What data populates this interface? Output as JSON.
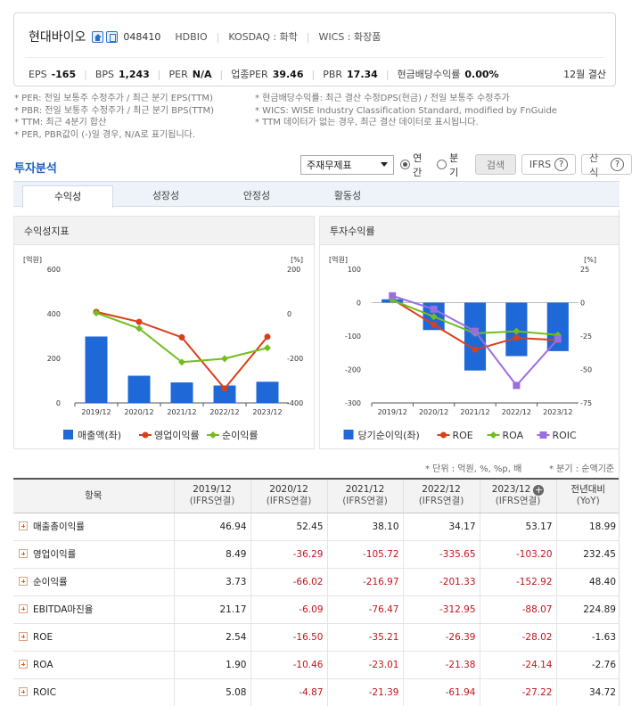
{
  "header": {
    "company_name": "현대바이오",
    "stock_code": "048410",
    "ticker": "HDBIO",
    "market": "KOSDAQ : 화학",
    "wics": "WICS : 화장품",
    "metrics": [
      {
        "label": "EPS",
        "value": "-165"
      },
      {
        "label": "BPS",
        "value": "1,243"
      },
      {
        "label": "PER",
        "value": "N/A"
      },
      {
        "label": "업종PER",
        "value": "39.46"
      },
      {
        "label": "PBR",
        "value": "17.34"
      },
      {
        "label": "현금배당수익률",
        "value": "0.00%"
      }
    ],
    "fiscal": "12월 결산"
  },
  "notes": {
    "left": [
      "* PER: 전일 보통주 수정주가 / 최근 분기 EPS(TTM)",
      "* PBR: 전일 보통주 수정주가 / 최근 분기 BPS(TTM)",
      "* TTM: 최근 4분기 합산",
      "* PER, PBR값이 (-)일 경우, N/A로 표기됩니다."
    ],
    "right": [
      "* 현금배당수익률: 최근 결산 수정DPS(현금) / 전일 보통주 수정주가",
      "* WICS: WISE Industry Classification Standard, modified by FnGuide",
      "* TTM 데이터가 없는 경우, 최근 결산 데이터로 표시됩니다."
    ]
  },
  "section": {
    "title": "투자분석",
    "select_value": "주재무제표",
    "radio_annual": "연간",
    "radio_quarter": "분기",
    "search_button": "검색",
    "ifrs_button": "IFRS",
    "formula_button": "산식"
  },
  "tabs": [
    "수익성",
    "성장성",
    "안정성",
    "활동성"
  ],
  "panels": {
    "left_title": "수익성지표",
    "right_title": "투자수익률"
  },
  "chart_data": [
    {
      "type": "bar",
      "title": "수익성지표",
      "categories": [
        "2019/12",
        "2020/12",
        "2021/12",
        "2022/12",
        "2023/12"
      ],
      "left_axis_label": "[억원]",
      "right_axis_label": "[%]",
      "ylim_left": [
        0,
        600
      ],
      "ylim_right": [
        -400,
        200
      ],
      "left_ticks": [
        "600",
        "400",
        "200",
        "0"
      ],
      "right_ticks": [
        "200",
        "0",
        "-200",
        "-400"
      ],
      "bar_series": [
        {
          "name": "매출액(좌)",
          "color": "#1e68d8",
          "values": [
            298,
            122,
            92,
            78,
            95
          ]
        }
      ],
      "line_series": [
        {
          "name": "영업이익률",
          "color": "#d8401a",
          "values": [
            8.49,
            -36.29,
            -105.72,
            -335.65,
            -103.2
          ]
        },
        {
          "name": "순이익률",
          "color": "#72be1e",
          "values": [
            3.73,
            -66.02,
            -216.97,
            -201.33,
            -152.92
          ]
        }
      ],
      "legend_position": "bottom",
      "grid": false
    },
    {
      "type": "bar",
      "title": "투자수익률",
      "categories": [
        "2019/12",
        "2020/12",
        "2021/12",
        "2022/12",
        "2023/12"
      ],
      "left_axis_label": "[억원]",
      "right_axis_label": "[%]",
      "ylim_left": [
        -300,
        100
      ],
      "ylim_right": [
        -75,
        25
      ],
      "left_ticks": [
        "100",
        "0",
        "-100",
        "-200",
        "-300"
      ],
      "right_ticks": [
        "25",
        "0",
        "-25",
        "-50",
        "-75"
      ],
      "bar_series": [
        {
          "name": "당기순이익(좌)",
          "color": "#1e68d8",
          "values": [
            10,
            -82,
            -203,
            -160,
            -145
          ]
        }
      ],
      "line_series": [
        {
          "name": "ROE",
          "color": "#d8401a",
          "values": [
            2.54,
            -16.5,
            -35.21,
            -26.39,
            -28.02
          ]
        },
        {
          "name": "ROA",
          "color": "#72be1e",
          "values": [
            1.9,
            -10.46,
            -23.01,
            -21.38,
            -24.14
          ]
        },
        {
          "name": "ROIC",
          "color": "#9b6ee0",
          "values": [
            5.08,
            -4.87,
            -21.39,
            -61.94,
            -27.22
          ]
        }
      ],
      "legend_position": "bottom",
      "grid": false
    }
  ],
  "table": {
    "unit_note": "* 단위 : 억원, %, %p, 배",
    "quarter_note": "* 분기 : 순액기준",
    "headers": [
      {
        "line1": "항목",
        "line2": ""
      },
      {
        "line1": "2019/12",
        "line2": "(IFRS연결)"
      },
      {
        "line1": "2020/12",
        "line2": "(IFRS연결)"
      },
      {
        "line1": "2021/12",
        "line2": "(IFRS연결)"
      },
      {
        "line1": "2022/12",
        "line2": "(IFRS연결)"
      },
      {
        "line1": "2023/12",
        "line2": "(IFRS연결)"
      },
      {
        "line1": "전년대비",
        "line2": "(YoY)"
      }
    ],
    "rows": [
      {
        "label": "매출총이익률",
        "values": [
          "46.94",
          "52.45",
          "38.10",
          "34.17",
          "53.17",
          "18.99"
        ]
      },
      {
        "label": "영업이익률",
        "values": [
          "8.49",
          "-36.29",
          "-105.72",
          "-335.65",
          "-103.20",
          "232.45"
        ]
      },
      {
        "label": "순이익률",
        "values": [
          "3.73",
          "-66.02",
          "-216.97",
          "-201.33",
          "-152.92",
          "48.40"
        ]
      },
      {
        "label": "EBITDA마진율",
        "values": [
          "21.17",
          "-6.09",
          "-76.47",
          "-312.95",
          "-88.07",
          "224.89"
        ]
      },
      {
        "label": "ROE",
        "values": [
          "2.54",
          "-16.50",
          "-35.21",
          "-26.39",
          "-28.02",
          "-1.63"
        ]
      },
      {
        "label": "ROA",
        "values": [
          "1.90",
          "-10.46",
          "-23.01",
          "-21.38",
          "-24.14",
          "-2.76"
        ]
      },
      {
        "label": "ROIC",
        "values": [
          "5.08",
          "-4.87",
          "-21.39",
          "-61.94",
          "-27.22",
          "34.72"
        ]
      }
    ]
  }
}
